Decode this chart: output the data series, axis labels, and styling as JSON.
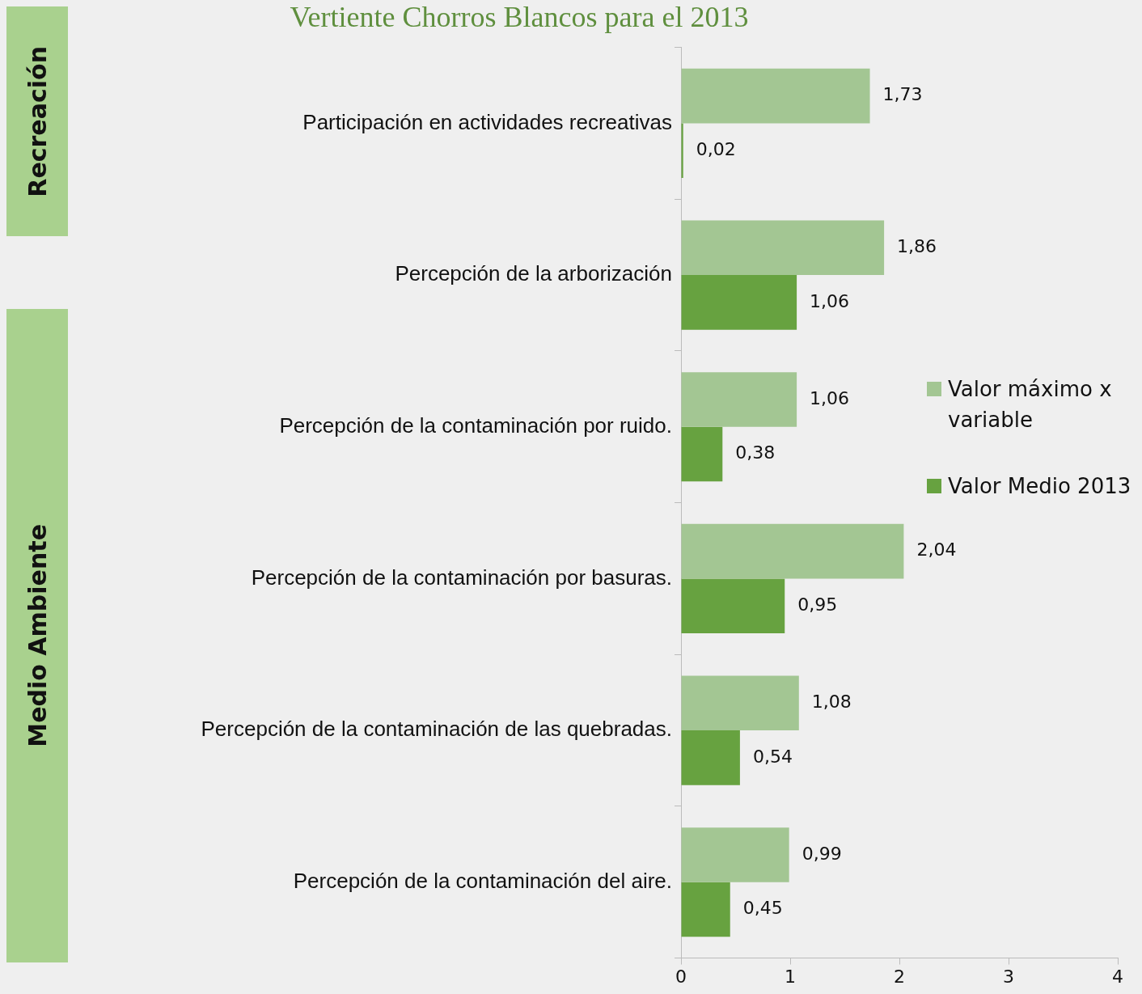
{
  "chart_data": {
    "type": "bar",
    "orientation": "horizontal",
    "title": "Vertiente Chorros Blancos para el  2013",
    "annotations": [
      "Recreación",
      "Medio Ambiente"
    ],
    "categories": [
      "Participación en actividades recreativas",
      "Percepción de la arborización",
      "Percepción de la contaminación por ruido.",
      "Percepción de la contaminación por basuras.",
      "Percepción de la contaminación de las quebradas.",
      "Percepción de la contaminación del aire."
    ],
    "series": [
      {
        "name": "Valor máximo x variable",
        "color": "#a3c693",
        "values": [
          1.73,
          1.86,
          1.06,
          2.04,
          1.08,
          0.99
        ],
        "value_labels": [
          "1,73",
          "1,86",
          "1,06",
          "2,04",
          "1,08",
          "0,99"
        ]
      },
      {
        "name": "Valor Medio 2013",
        "color": "#67a240",
        "values": [
          0.02,
          1.06,
          0.38,
          0.95,
          0.54,
          0.45
        ],
        "value_labels": [
          "0,02",
          "1,06",
          "0,38",
          "0,95",
          "0,54",
          "0,45"
        ]
      }
    ],
    "xlim": [
      0,
      4
    ],
    "xticks": [
      0,
      1,
      2,
      3,
      4
    ],
    "legend": "right"
  }
}
